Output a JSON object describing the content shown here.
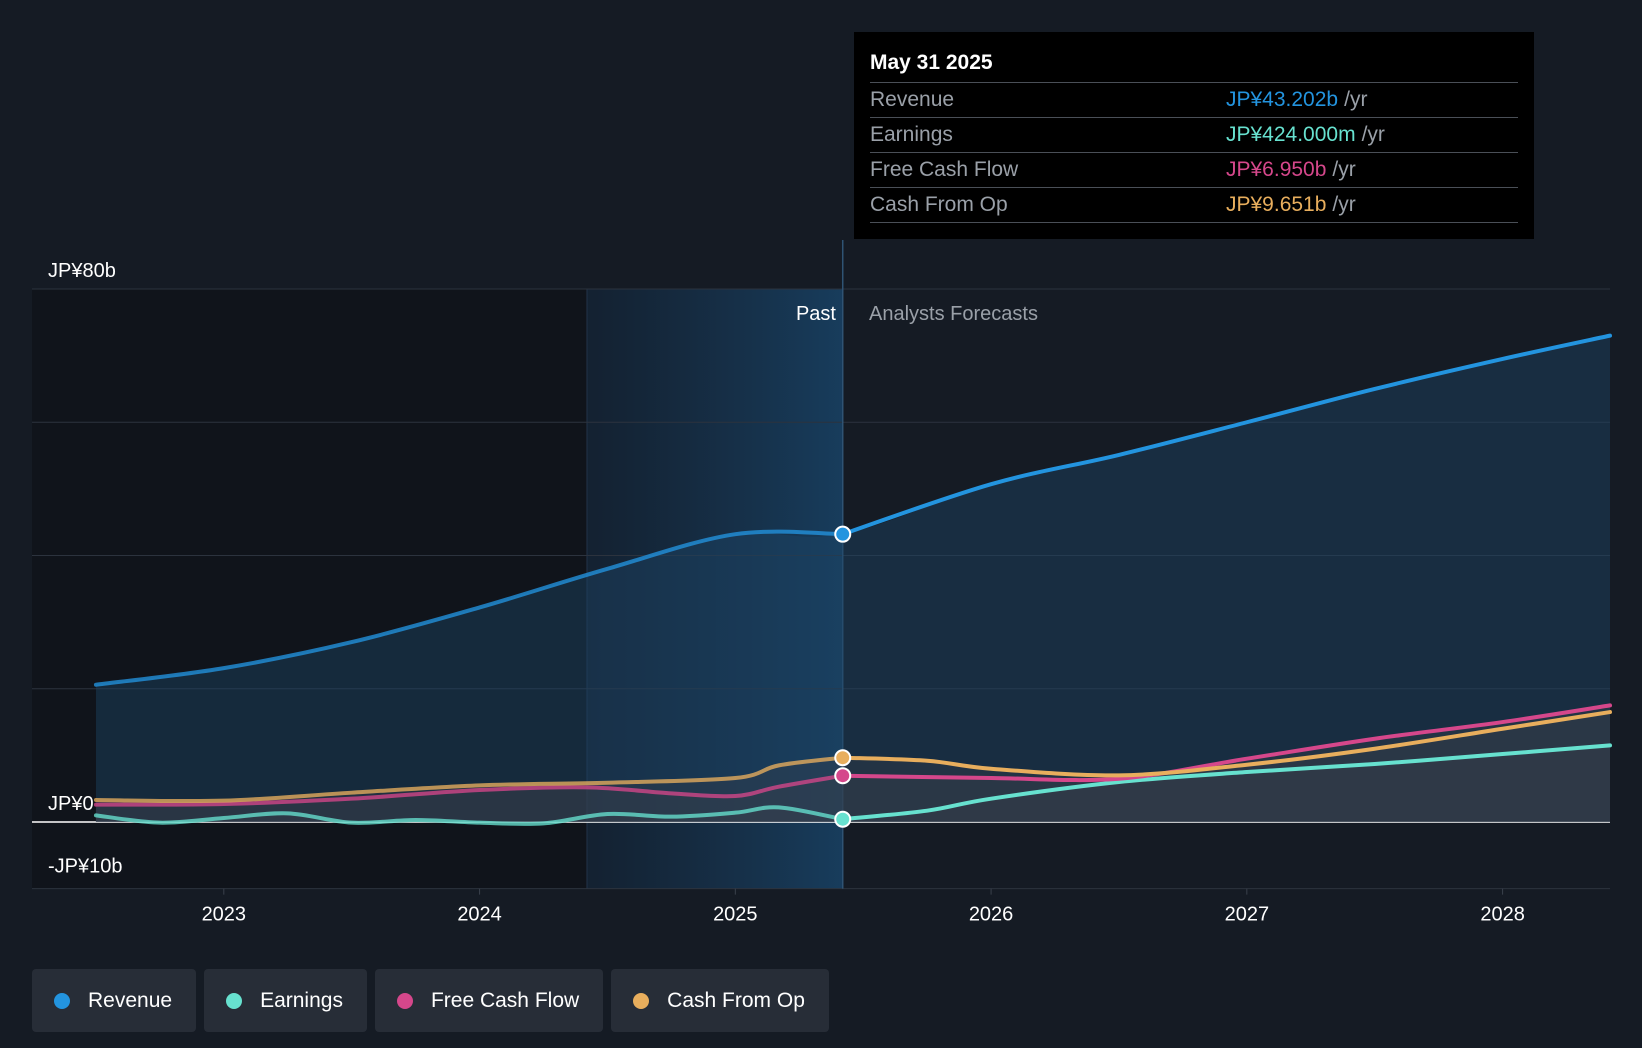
{
  "tooltip": {
    "date": "May 31 2025",
    "rows": [
      {
        "name": "Revenue",
        "value": "JP¥43.202b",
        "unit": "/yr",
        "color": "#2394df"
      },
      {
        "name": "Earnings",
        "value": "JP¥424.000m",
        "unit": "/yr",
        "color": "#67e1cf"
      },
      {
        "name": "Free Cash Flow",
        "value": "JP¥6.950b",
        "unit": "/yr",
        "color": "#d5478b"
      },
      {
        "name": "Cash From Op",
        "value": "JP¥9.651b",
        "unit": "/yr",
        "color": "#e8ae5d"
      }
    ]
  },
  "regions": {
    "past": "Past",
    "forecast": "Analysts Forecasts"
  },
  "legend": [
    {
      "label": "Revenue",
      "color": "#2394df"
    },
    {
      "label": "Earnings",
      "color": "#67e1cf"
    },
    {
      "label": "Free Cash Flow",
      "color": "#d5478b"
    },
    {
      "label": "Cash From Op",
      "color": "#e8ae5d"
    }
  ],
  "chart_data": {
    "type": "line",
    "title": "",
    "xlabel": "",
    "ylabel": "",
    "xlim": [
      2022.25,
      2028.42
    ],
    "ylim": [
      -10,
      80
    ],
    "y_tick_labels": [
      {
        "value": 80,
        "label": "JP¥80b"
      },
      {
        "value": 0,
        "label": "JP¥0"
      },
      {
        "value": -10,
        "label": "-JP¥10b"
      }
    ],
    "y_gridlines": [
      80,
      60,
      40,
      20,
      0,
      -10
    ],
    "x_ticks": [
      {
        "value": 2023,
        "label": "2023"
      },
      {
        "value": 2024,
        "label": "2024"
      },
      {
        "value": 2025,
        "label": "2025"
      },
      {
        "value": 2026,
        "label": "2026"
      },
      {
        "value": 2027,
        "label": "2027"
      },
      {
        "value": 2028,
        "label": "2028"
      }
    ],
    "past_highlight_start": 2024.42,
    "forecast_start": 2025.42,
    "series": [
      {
        "name": "Revenue",
        "color": "#2394df",
        "x": [
          2022.5,
          2023.0,
          2023.5,
          2024.0,
          2024.5,
          2025.0,
          2025.42,
          2026.0,
          2026.5,
          2027.0,
          2027.5,
          2028.0,
          2028.42
        ],
        "y": [
          20.6,
          23.1,
          27.0,
          32.2,
          38.0,
          43.2,
          43.2,
          50.7,
          55.1,
          60.0,
          65.0,
          69.5,
          73.0
        ]
      },
      {
        "name": "Earnings",
        "color": "#67e1cf",
        "x": [
          2022.5,
          2022.75,
          2023.0,
          2023.25,
          2023.5,
          2023.75,
          2024.0,
          2024.25,
          2024.5,
          2024.75,
          2025.0,
          2025.17,
          2025.42,
          2025.75,
          2026.0,
          2026.5,
          2027.0,
          2027.5,
          2028.0,
          2028.42
        ],
        "y": [
          1.0,
          -0.1,
          0.6,
          1.3,
          -0.1,
          0.3,
          -0.1,
          -0.2,
          1.2,
          0.8,
          1.4,
          2.2,
          0.42,
          1.7,
          3.5,
          6.0,
          7.5,
          8.7,
          10.2,
          11.5
        ]
      },
      {
        "name": "Free Cash Flow",
        "color": "#d5478b",
        "x": [
          2022.5,
          2023.0,
          2023.5,
          2024.0,
          2024.42,
          2024.75,
          2025.0,
          2025.17,
          2025.42,
          2026.0,
          2026.5,
          2027.0,
          2027.5,
          2028.0,
          2028.42
        ],
        "y": [
          2.6,
          2.7,
          3.5,
          4.8,
          5.2,
          4.3,
          3.9,
          5.3,
          6.95,
          6.6,
          6.5,
          9.5,
          12.5,
          15.0,
          17.5
        ]
      },
      {
        "name": "Cash From Op",
        "color": "#e8ae5d",
        "x": [
          2022.5,
          2023.0,
          2023.5,
          2024.0,
          2024.5,
          2025.0,
          2025.17,
          2025.42,
          2025.75,
          2026.0,
          2026.5,
          2027.0,
          2027.5,
          2028.0,
          2028.42
        ],
        "y": [
          3.3,
          3.2,
          4.4,
          5.5,
          5.9,
          6.6,
          8.5,
          9.651,
          9.2,
          8.0,
          7.0,
          8.6,
          11.0,
          14.0,
          16.5
        ]
      }
    ]
  }
}
